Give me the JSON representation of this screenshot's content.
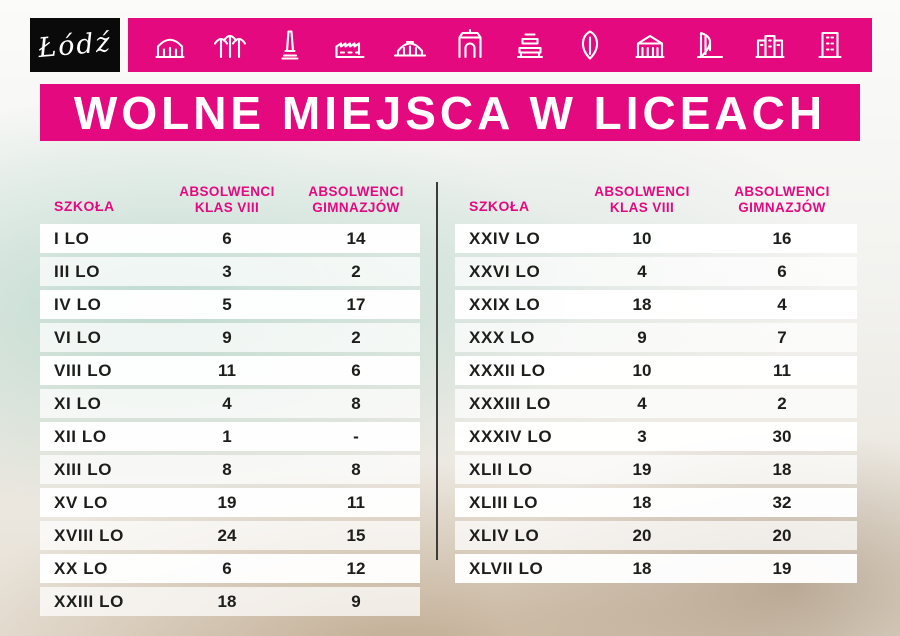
{
  "brand": {
    "logo_text": "Łódź"
  },
  "colors": {
    "accent": "#e5097f",
    "text_dark": "#1d1d1b"
  },
  "header": {
    "icons": [
      "market-hall",
      "station-canopy",
      "monument",
      "factory",
      "arena",
      "gate",
      "library",
      "leaf",
      "palace",
      "fountain",
      "townhouses",
      "office-building"
    ]
  },
  "title": {
    "text": "WOLNE MIEJSCA W LICEACH"
  },
  "table_headers": {
    "school": "SZKOŁA",
    "abs_viii": "ABSOLWENCI\nKLAS VIII",
    "abs_gim": "ABSOLWENCI\nGIMNAZJÓW"
  },
  "left_table": {
    "rows": [
      [
        "I LO",
        "6",
        "14"
      ],
      [
        "III LO",
        "3",
        "2"
      ],
      [
        "IV LO",
        "5",
        "17"
      ],
      [
        "VI LO",
        "9",
        "2"
      ],
      [
        "VIII LO",
        "11",
        "6"
      ],
      [
        "XI LO",
        "4",
        "8"
      ],
      [
        "XII LO",
        "1",
        "-"
      ],
      [
        "XIII LO",
        "8",
        "8"
      ],
      [
        "XV LO",
        "19",
        "11"
      ],
      [
        "XVIII LO",
        "24",
        "15"
      ],
      [
        "XX LO",
        "6",
        "12"
      ],
      [
        "XXIII LO",
        "18",
        "9"
      ]
    ]
  },
  "right_table": {
    "rows": [
      [
        "XXIV LO",
        "10",
        "16"
      ],
      [
        "XXVI LO",
        "4",
        "6"
      ],
      [
        "XXIX LO",
        "18",
        "4"
      ],
      [
        "XXX LO",
        "9",
        "7"
      ],
      [
        "XXXII LO",
        "10",
        "11"
      ],
      [
        "XXXIII LO",
        "4",
        "2"
      ],
      [
        "XXXIV LO",
        "3",
        "30"
      ],
      [
        "XLII LO",
        "19",
        "18"
      ],
      [
        "XLIII LO",
        "18",
        "32"
      ],
      [
        "XLIV LO",
        "20",
        "20"
      ],
      [
        "XLVII LO",
        "18",
        "19"
      ]
    ]
  }
}
